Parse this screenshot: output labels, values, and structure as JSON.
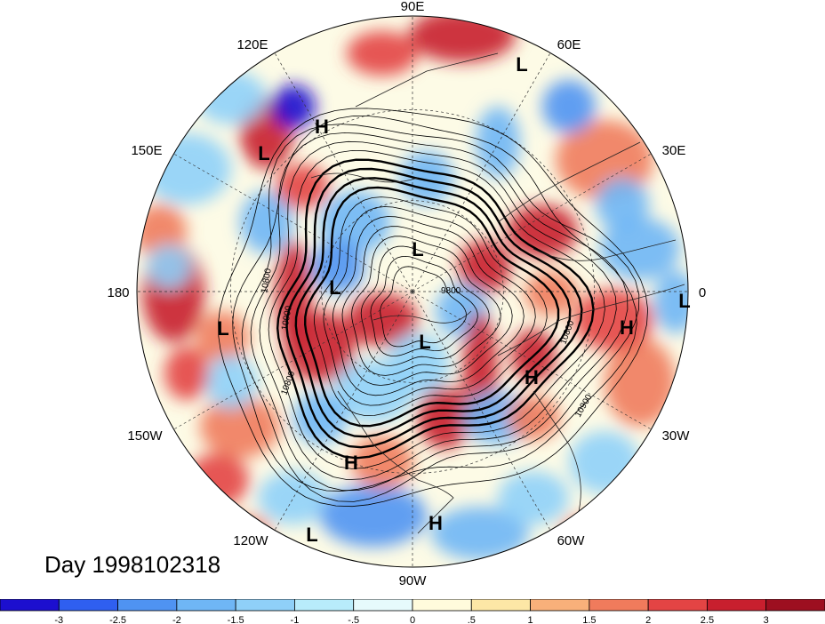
{
  "title": "Day 1998102318",
  "longitude_labels": [
    "90E",
    "60E",
    "30E",
    "0",
    "30W",
    "60W",
    "90W",
    "120W",
    "150W",
    "180",
    "150E",
    "120E"
  ],
  "pressure_centers": [
    {
      "type": "L",
      "lon": 62
    },
    {
      "type": "H",
      "lon": 112
    },
    {
      "type": "L",
      "lon": 135
    },
    {
      "type": "L",
      "lon": 88
    },
    {
      "type": "L",
      "lon": 165
    },
    {
      "type": "L",
      "lon": -175
    },
    {
      "type": "L",
      "lon": -70
    },
    {
      "type": "H",
      "lon": -105
    },
    {
      "type": "L",
      "lon": -125
    },
    {
      "type": "H",
      "lon": -82
    },
    {
      "type": "H",
      "lon": -40
    },
    {
      "type": "H",
      "lon": -10
    },
    {
      "type": "L",
      "lon": 0
    }
  ],
  "contour_labels": [
    "9800",
    "10800",
    "10800",
    "10900",
    "10800",
    "10900"
  ],
  "colorbar": {
    "tick_labels": [
      "-3",
      "-2.5",
      "-2",
      "-1.5",
      "-1",
      "-.5",
      "0",
      ".5",
      "1",
      "1.5",
      "2",
      "2.5",
      "3"
    ],
    "colors": [
      "#1c0fcf",
      "#2f5ff0",
      "#4f93f2",
      "#6fb6f5",
      "#8fd0f8",
      "#b8ecfb",
      "#e6fafc",
      "#fffbdc",
      "#fde7a6",
      "#f8b07a",
      "#f07b5c",
      "#e34444",
      "#c81f2e",
      "#9d0f20"
    ]
  },
  "colors": {
    "background": "#ffffff",
    "contour": "#000000"
  }
}
